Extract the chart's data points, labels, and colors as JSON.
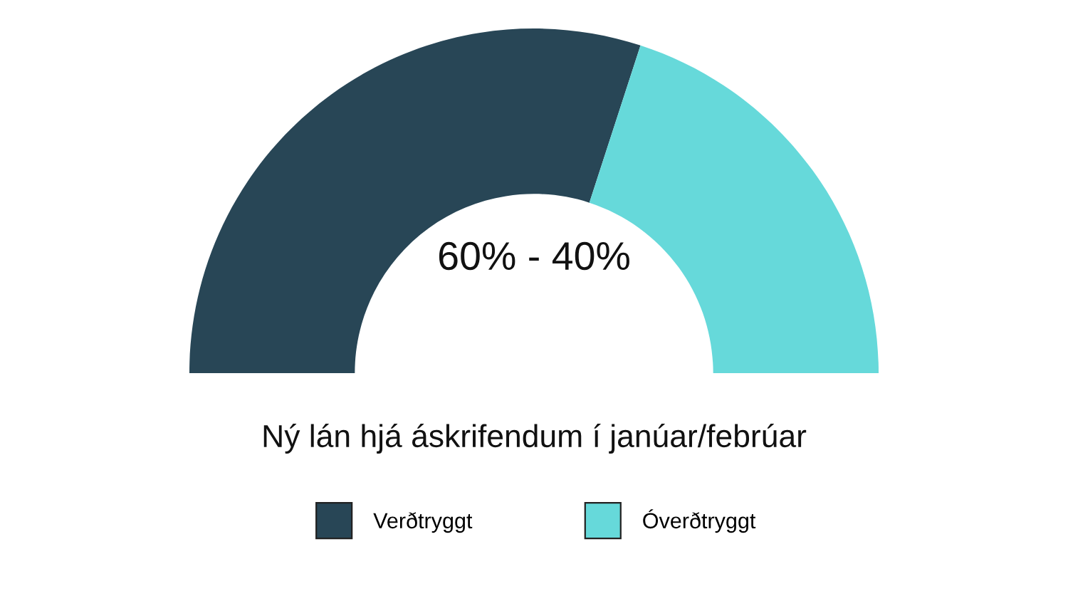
{
  "chart_data": {
    "type": "donut",
    "title": "Ný lán hjá áskrifendum í janúar/febrúar",
    "categories": [
      "Verðtryggt",
      "Óverðtryggt"
    ],
    "values": [
      60,
      40
    ],
    "colors": [
      "#284656",
      "#66d9da"
    ],
    "annotations": [
      "60% - 40%"
    ],
    "legend": "bottom"
  }
}
